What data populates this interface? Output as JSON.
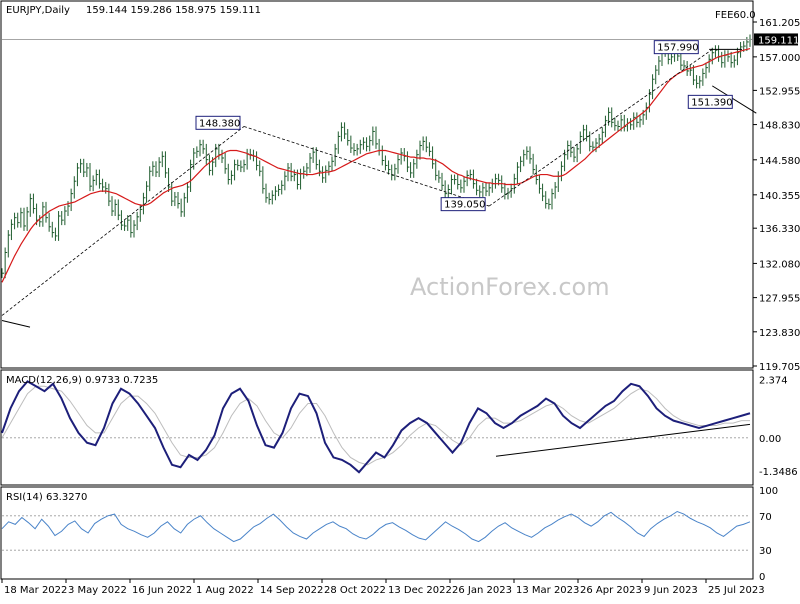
{
  "header": {
    "symbol_line": "EURJPY,Daily",
    "ohlc": "159.144 159.286 158.975 159.111",
    "top_right_label": "FEE60.0"
  },
  "colors": {
    "price_bars": "#1f5c2e",
    "ma_line": "#d61a1a",
    "macd_line": "#1d1f7a",
    "macd_signal": "#bdbdbd",
    "rsi_line": "#4a84c9",
    "trendline": "#000000",
    "dashed_trend": "#000000",
    "watermark": "#c8c8c8"
  },
  "watermark": "ActionForex.com",
  "chart_data": [
    {
      "type": "line",
      "panel": "price",
      "title": "EURJPY,Daily",
      "y_ticks": [
        "161.205",
        "157.000",
        "152.955",
        "148.830",
        "144.580",
        "140.355",
        "136.330",
        "132.080",
        "127.955",
        "123.830",
        "119.705"
      ],
      "ylim": [
        119.705,
        161.205
      ],
      "last_price_label": "159.111",
      "annotations": [
        "148.380",
        "139.050",
        "157.990",
        "151.390"
      ],
      "series": [
        {
          "name": "close",
          "values": [
            130.9,
            133.4,
            135.5,
            136.8,
            137.6,
            137.0,
            138.2,
            136.6,
            138.3,
            139.9,
            138.7,
            137.3,
            137.1,
            138.9,
            137.6,
            136.5,
            135.8,
            135.4,
            137.8,
            137.3,
            138.4,
            139.0,
            140.5,
            142.0,
            143.6,
            144.1,
            143.1,
            143.6,
            141.4,
            142.1,
            142.8,
            141.7,
            141.3,
            141.1,
            139.6,
            138.4,
            139.2,
            137.9,
            136.7,
            136.6,
            137.3,
            135.8,
            136.7,
            137.7,
            138.6,
            140.0,
            141.4,
            143.2,
            143.8,
            143.1,
            144.3,
            145.0,
            143.0,
            141.3,
            139.6,
            140.1,
            139.3,
            138.3,
            140.0,
            141.3,
            144.0,
            145.4,
            145.6,
            146.4,
            145.9,
            144.6,
            143.3,
            144.3,
            145.9,
            145.2,
            144.8,
            143.5,
            142.2,
            142.7,
            144.0,
            143.9,
            143.7,
            144.0,
            145.3,
            145.2,
            145.0,
            143.9,
            143.2,
            141.1,
            140.0,
            139.8,
            140.3,
            140.8,
            141.0,
            141.5,
            142.6,
            143.6,
            142.6,
            142.8,
            141.6,
            142.9,
            143.2,
            143.6,
            144.8,
            145.5,
            144.0,
            143.2,
            142.4,
            143.3,
            143.8,
            144.4,
            145.9,
            147.4,
            148.5,
            147.7,
            146.9,
            146.0,
            145.7,
            145.9,
            146.4,
            146.7,
            146.2,
            146.9,
            148.0,
            146.5,
            145.7,
            144.5,
            143.9,
            143.4,
            142.7,
            143.5,
            144.6,
            145.4,
            145.0,
            143.7,
            143.0,
            144.1,
            145.2,
            146.3,
            146.8,
            146.1,
            145.6,
            144.1,
            142.7,
            142.4,
            141.5,
            140.5,
            141.0,
            142.2,
            142.2,
            141.6,
            141.2,
            142.0,
            142.7,
            142.8,
            141.7,
            140.9,
            140.7,
            141.2,
            140.8,
            141.2,
            141.7,
            142.3,
            142.1,
            141.2,
            140.4,
            140.6,
            141.1,
            142.3,
            143.7,
            144.4,
            145.2,
            145.6,
            144.7,
            143.4,
            142.2,
            141.1,
            140.2,
            139.3,
            139.2,
            140.5,
            141.3,
            142.6,
            143.8,
            145.2,
            146.3,
            145.5,
            144.9,
            145.9,
            147.4,
            148.2,
            147.4,
            146.2,
            146.1,
            146.6,
            147.1,
            147.9,
            149.3,
            150.3,
            149.1,
            148.7,
            148.6,
            149.4,
            148.6,
            149.0,
            148.8,
            149.7,
            149.1,
            149.4,
            150.0,
            150.9,
            152.5,
            154.3,
            155.4,
            156.5,
            157.6,
            157.7,
            156.7,
            157.0,
            157.6,
            157.1,
            156.0,
            155.9,
            155.3,
            155.4,
            154.2,
            153.8,
            154.1,
            155.0,
            155.7,
            156.7,
            157.5,
            157.8,
            157.0,
            156.3,
            157.2,
            157.0,
            156.3,
            156.6,
            157.5,
            158.2,
            158.3,
            158.8,
            159.1
          ]
        },
        {
          "name": "moving average",
          "values": [
            129.8,
            130.6,
            131.4,
            132.2,
            133.0,
            133.7,
            134.4,
            135.0,
            135.6,
            136.2,
            136.7,
            137.1,
            137.5,
            137.8,
            138.1,
            138.4,
            138.6,
            138.8,
            139.0,
            139.1,
            139.2,
            139.3,
            139.4,
            139.5,
            139.7,
            139.9,
            140.1,
            140.3,
            140.5,
            140.6,
            140.7,
            140.8,
            140.8,
            140.8,
            140.7,
            140.6,
            140.5,
            140.3,
            140.1,
            139.9,
            139.7,
            139.5,
            139.3,
            139.2,
            139.1,
            139.1,
            139.2,
            139.4,
            139.7,
            140.0,
            140.3,
            140.6,
            140.8,
            141.0,
            141.2,
            141.3,
            141.4,
            141.5,
            141.7,
            141.9,
            142.2,
            142.6,
            143.0,
            143.4,
            143.8,
            144.1,
            144.4,
            144.7,
            145.0,
            145.2,
            145.4,
            145.6,
            145.7,
            145.7,
            145.7,
            145.6,
            145.5,
            145.4,
            145.2,
            145.1,
            145.0,
            144.8,
            144.6,
            144.4,
            144.2,
            144.0,
            143.8,
            143.6,
            143.5,
            143.4,
            143.3,
            143.2,
            143.1,
            143.0,
            142.9,
            142.9,
            142.8,
            142.8,
            142.8,
            142.9,
            143.0,
            143.0,
            143.1,
            143.1,
            143.2,
            143.3,
            143.5,
            143.7,
            143.9,
            144.1,
            144.3,
            144.5,
            144.7,
            144.9,
            145.1,
            145.3,
            145.4,
            145.5,
            145.6,
            145.7,
            145.7,
            145.7,
            145.6,
            145.5,
            145.4,
            145.3,
            145.2,
            145.1,
            145.0,
            144.9,
            144.9,
            144.8,
            144.8,
            144.8,
            144.7,
            144.7,
            144.6,
            144.5,
            144.3,
            144.1,
            143.8,
            143.5,
            143.2,
            143.0,
            142.8,
            142.7,
            142.5,
            142.4,
            142.3,
            142.2,
            142.1,
            142.0,
            141.9,
            141.8,
            141.8,
            141.7,
            141.7,
            141.7,
            141.7,
            141.6,
            141.6,
            141.6,
            141.6,
            141.7,
            141.8,
            142.0,
            142.2,
            142.4,
            142.6,
            142.7,
            142.8,
            142.8,
            142.8,
            142.7,
            142.6,
            142.6,
            142.6,
            142.7,
            142.9,
            143.2,
            143.5,
            143.8,
            144.1,
            144.4,
            144.7,
            145.1,
            145.5,
            145.8,
            146.1,
            146.4,
            146.7,
            147.0,
            147.3,
            147.6,
            147.9,
            148.2,
            148.5,
            148.8,
            149.1,
            149.3,
            149.6,
            149.9,
            150.2,
            150.5,
            150.9,
            151.4,
            151.9,
            152.4,
            152.9,
            153.4,
            153.9,
            154.3,
            154.6,
            154.9,
            155.1,
            155.3,
            155.5,
            155.6,
            155.7,
            155.8,
            155.9,
            156.0,
            156.2,
            156.4,
            156.6,
            156.8,
            157.0,
            157.1,
            157.2,
            157.3,
            157.4,
            157.5,
            157.6,
            157.7,
            157.8,
            157.9,
            158.0
          ]
        }
      ]
    },
    {
      "type": "line",
      "panel": "macd",
      "title": "MACD(12,26,9) 0.9733 0.7235",
      "y_ticks": [
        "2.374",
        "0.00",
        "-1.3486"
      ],
      "ylim": [
        -1.8,
        2.6
      ],
      "series": [
        {
          "name": "macd",
          "values": [
            0.2,
            1.2,
            1.9,
            2.3,
            2.1,
            1.9,
            2.2,
            1.6,
            0.8,
            0.2,
            -0.2,
            -0.3,
            0.4,
            1.4,
            2.0,
            1.8,
            1.4,
            0.9,
            0.4,
            -0.4,
            -1.1,
            -1.2,
            -0.7,
            -0.9,
            -0.5,
            0.1,
            1.2,
            1.8,
            2.0,
            1.5,
            0.5,
            -0.3,
            -0.4,
            0.2,
            1.2,
            1.8,
            1.7,
            1.0,
            -0.2,
            -0.8,
            -0.9,
            -1.1,
            -1.4,
            -1.0,
            -0.6,
            -0.8,
            -0.3,
            0.3,
            0.6,
            0.8,
            0.6,
            0.2,
            -0.2,
            -0.6,
            -0.2,
            0.6,
            1.2,
            1.0,
            0.6,
            0.4,
            0.6,
            0.9,
            1.1,
            1.3,
            1.6,
            1.4,
            0.9,
            0.6,
            0.4,
            0.7,
            1.0,
            1.3,
            1.5,
            1.9,
            2.2,
            2.1,
            1.7,
            1.2,
            0.9,
            0.7,
            0.6,
            0.5,
            0.4,
            0.5,
            0.6,
            0.7,
            0.8,
            0.9,
            1.0
          ]
        },
        {
          "name": "signal",
          "values": [
            0.0,
            0.6,
            1.2,
            1.8,
            2.1,
            2.1,
            2.0,
            1.9,
            1.5,
            1.0,
            0.5,
            0.2,
            0.2,
            0.8,
            1.4,
            1.7,
            1.7,
            1.4,
            1.0,
            0.4,
            -0.2,
            -0.7,
            -0.8,
            -0.8,
            -0.7,
            -0.4,
            0.2,
            0.9,
            1.4,
            1.6,
            1.3,
            0.7,
            0.2,
            0.0,
            0.4,
            1.0,
            1.4,
            1.4,
            0.9,
            0.2,
            -0.4,
            -0.8,
            -1.0,
            -1.1,
            -0.9,
            -0.8,
            -0.6,
            -0.3,
            0.1,
            0.4,
            0.6,
            0.5,
            0.2,
            -0.1,
            -0.3,
            0.0,
            0.5,
            0.8,
            0.8,
            0.6,
            0.6,
            0.7,
            0.9,
            1.1,
            1.3,
            1.4,
            1.2,
            0.9,
            0.7,
            0.6,
            0.8,
            1.0,
            1.2,
            1.5,
            1.8,
            2.0,
            1.9,
            1.6,
            1.2,
            0.9,
            0.7,
            0.6,
            0.5,
            0.5,
            0.5,
            0.6,
            0.6,
            0.7,
            0.7
          ]
        }
      ]
    },
    {
      "type": "line",
      "panel": "rsi",
      "title": "RSI(14) 63.3270",
      "y_ticks": [
        "100",
        "70",
        "30",
        "0"
      ],
      "ylim": [
        0,
        100
      ],
      "series": [
        {
          "name": "rsi",
          "values": [
            55,
            63,
            60,
            68,
            62,
            55,
            66,
            58,
            47,
            52,
            60,
            64,
            55,
            50,
            61,
            66,
            70,
            72,
            60,
            55,
            52,
            48,
            45,
            50,
            58,
            63,
            55,
            50,
            60,
            66,
            70,
            62,
            55,
            50,
            45,
            40,
            43,
            50,
            57,
            61,
            67,
            72,
            65,
            57,
            50,
            46,
            43,
            50,
            55,
            60,
            63,
            58,
            55,
            49,
            45,
            43,
            48,
            55,
            60,
            62,
            57,
            53,
            48,
            44,
            42,
            49,
            56,
            63,
            58,
            54,
            49,
            43,
            40,
            45,
            52,
            58,
            62,
            56,
            52,
            48,
            45,
            50,
            56,
            60,
            65,
            69,
            72,
            68,
            62,
            58,
            63,
            70,
            74,
            68,
            63,
            57,
            50,
            46,
            55,
            61,
            66,
            70,
            75,
            72,
            67,
            63,
            60,
            56,
            50,
            46,
            52,
            58,
            60,
            63
          ]
        }
      ]
    }
  ],
  "x_axis": {
    "labels": [
      "18 Mar 2022",
      "3 May 2022",
      "16 Jun 2022",
      "1 Aug 2022",
      "14 Sep 2022",
      "28 Oct 2022",
      "13 Dec 2022",
      "26 Jan 2023",
      "13 Mar 2023",
      "26 Apr 2023",
      "9 Jun 2023",
      "25 Jul 2023"
    ]
  }
}
